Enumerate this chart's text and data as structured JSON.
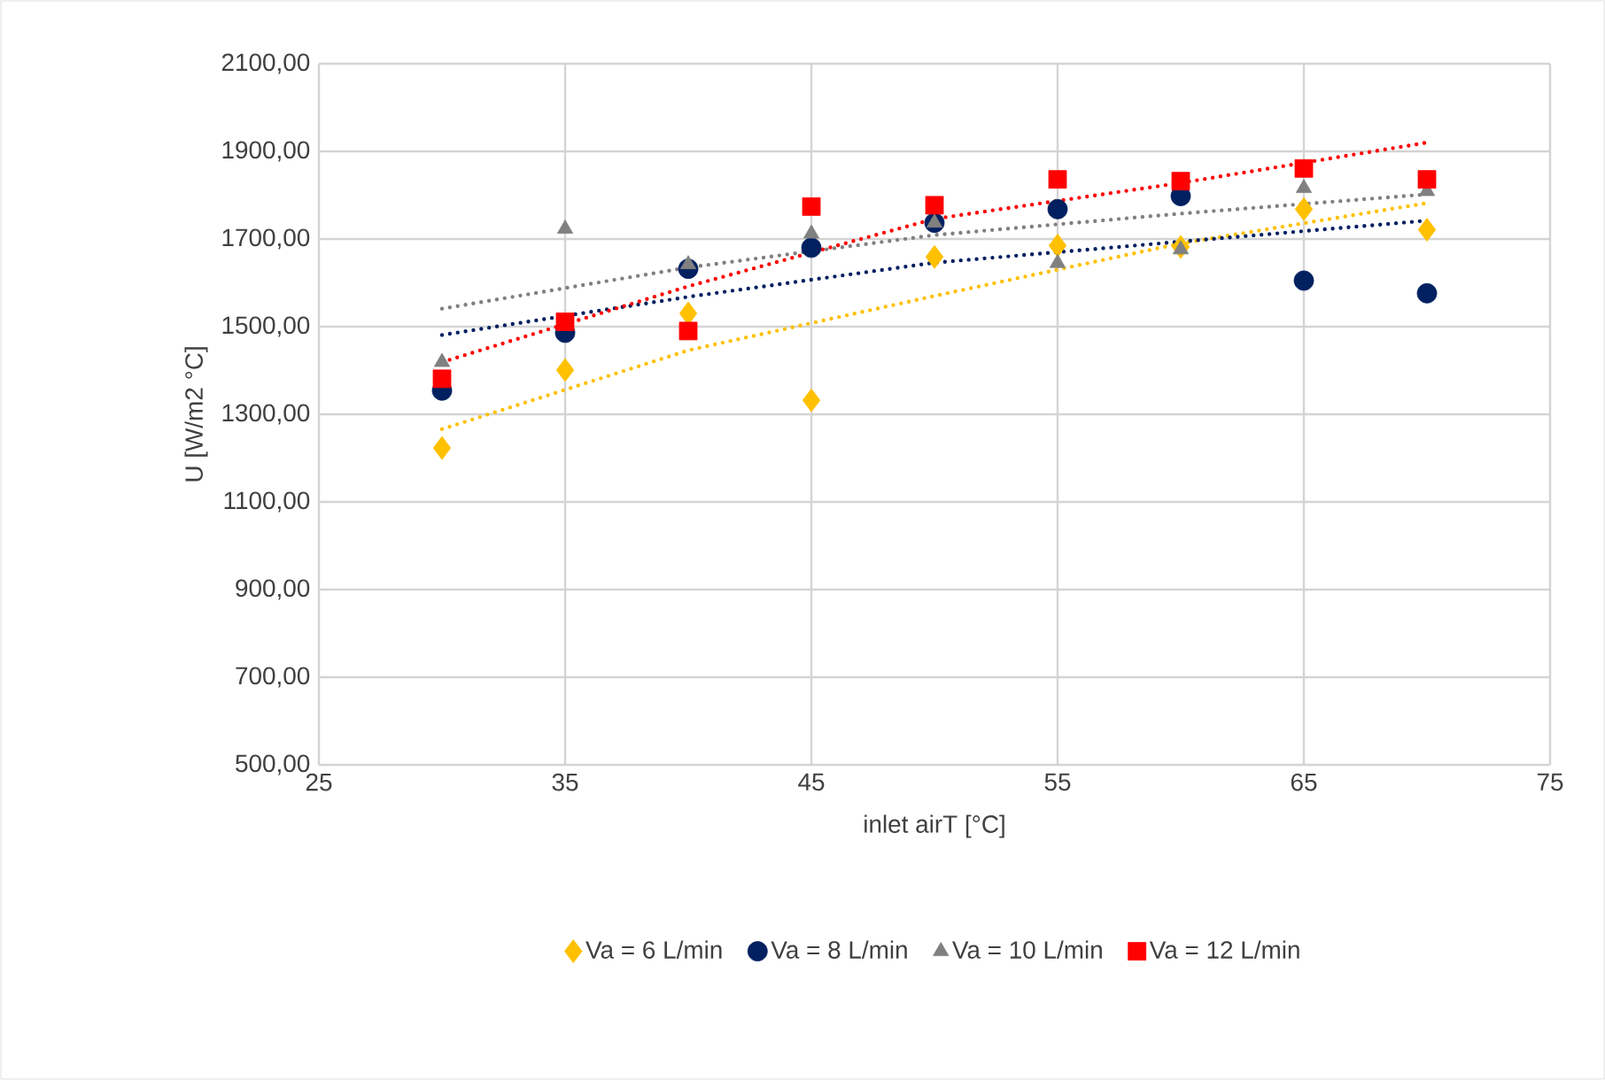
{
  "chart_data": {
    "type": "scatter",
    "xlabel": "inlet airT [°C]",
    "ylabel": "U [W/m2 °C]",
    "xlim": [
      25,
      75
    ],
    "xticks": [
      25,
      35,
      45,
      55,
      65,
      75
    ],
    "ylim": [
      500,
      2100
    ],
    "yticks": [
      {
        "value": 500,
        "label": "500,00"
      },
      {
        "value": 700,
        "label": "700,00"
      },
      {
        "value": 900,
        "label": "900,00"
      },
      {
        "value": 1100,
        "label": "1100,00"
      },
      {
        "value": 1300,
        "label": "1300,00"
      },
      {
        "value": 1500,
        "label": "1500,00"
      },
      {
        "value": 1700,
        "label": "1700,00"
      },
      {
        "value": 1900,
        "label": "1900,00"
      },
      {
        "value": 2100,
        "label": "2100,00"
      }
    ],
    "grid": true,
    "legend": "bottom",
    "x": [
      30,
      35,
      40,
      45,
      50,
      55,
      60,
      65,
      70
    ],
    "series": [
      {
        "name": "Va = 6 L/min",
        "color": "#ffc000",
        "marker": "diamond",
        "values": [
          1223,
          1401,
          1530,
          1332,
          1659,
          1685,
          1682,
          1768,
          1721
        ]
      },
      {
        "name": "Va = 8 L/min",
        "color": "#002060",
        "marker": "circle",
        "values": [
          1354,
          1486,
          1632,
          1680,
          1737,
          1768,
          1798,
          1605,
          1576
        ]
      },
      {
        "name": "Va = 10 L/min",
        "color": "#808080",
        "marker": "triangle",
        "values": [
          1419,
          1723,
          1642,
          1712,
          1737,
          1645,
          1676,
          1816,
          1809
        ]
      },
      {
        "name": "Va = 12 L/min",
        "color": "#ff0000",
        "marker": "square",
        "values": [
          1381,
          1511,
          1490,
          1774,
          1777,
          1836,
          1832,
          1861,
          1836
        ]
      },
      {
        "type": "line",
        "color": "#ffc000",
        "marker": "none",
        "line_style": "dotted",
        "x": [
          30,
          40,
          50,
          60,
          70
        ],
        "values": [
          1266,
          1446,
          1570,
          1690,
          1782
        ]
      },
      {
        "type": "line",
        "color": "#002060",
        "marker": "none",
        "line_style": "dotted",
        "x": [
          30,
          40,
          50,
          60,
          70
        ],
        "values": [
          1481,
          1568,
          1646,
          1694,
          1742
        ]
      },
      {
        "type": "line",
        "color": "#808080",
        "marker": "none",
        "line_style": "dotted",
        "x": [
          30,
          40,
          50,
          60,
          70
        ],
        "values": [
          1541,
          1635,
          1709,
          1758,
          1802
        ]
      },
      {
        "type": "line",
        "color": "#ff0000",
        "marker": "none",
        "line_style": "dotted",
        "x": [
          30,
          40,
          50,
          60,
          70
        ],
        "values": [
          1419,
          1592,
          1746,
          1828,
          1920
        ]
      }
    ]
  }
}
